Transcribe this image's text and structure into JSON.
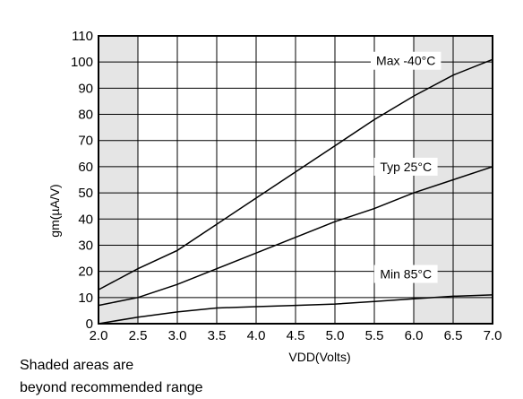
{
  "chart_data": {
    "type": "line",
    "xlabel": "VDD(Volts)",
    "ylabel": "gm(µA/V)",
    "xlim": [
      2.0,
      7.0
    ],
    "ylim": [
      0,
      110
    ],
    "x_ticks": [
      "2.0",
      "2.5",
      "3.0",
      "3.5",
      "4.0",
      "4.5",
      "5.0",
      "5.5",
      "6.0",
      "6.5",
      "7.0"
    ],
    "y_ticks": [
      "0",
      "10",
      "20",
      "30",
      "40",
      "50",
      "60",
      "70",
      "80",
      "90",
      "100",
      "110"
    ],
    "grid": true,
    "shaded_regions": [
      [
        2.0,
        2.5
      ],
      [
        6.0,
        7.0
      ]
    ],
    "colors": {
      "line": "#000000",
      "shade": "#e5e5e5",
      "background": "#ffffff"
    },
    "series": [
      {
        "name": "Max -40°C",
        "x": [
          2.0,
          2.5,
          3.0,
          3.5,
          4.0,
          4.5,
          5.0,
          5.5,
          6.0,
          6.5,
          7.0
        ],
        "values": [
          13,
          21,
          28,
          38,
          48,
          58,
          68,
          78,
          87,
          95,
          101
        ]
      },
      {
        "name": "Typ 25°C",
        "x": [
          2.0,
          2.5,
          3.0,
          3.5,
          4.0,
          4.5,
          5.0,
          5.5,
          6.0,
          6.5,
          7.0
        ],
        "values": [
          7,
          10,
          15,
          21,
          27,
          33,
          39,
          44,
          50,
          55,
          60
        ]
      },
      {
        "name": "Min 85°C",
        "x": [
          2.0,
          2.5,
          3.0,
          3.5,
          4.0,
          4.5,
          5.0,
          5.5,
          6.0,
          6.5,
          7.0
        ],
        "values": [
          0,
          2.5,
          4.5,
          6,
          6.5,
          7,
          7.5,
          8.5,
          9.5,
          10.5,
          11
        ]
      }
    ],
    "annotations": [
      "Shaded areas are",
      "beyond recommended range"
    ]
  }
}
